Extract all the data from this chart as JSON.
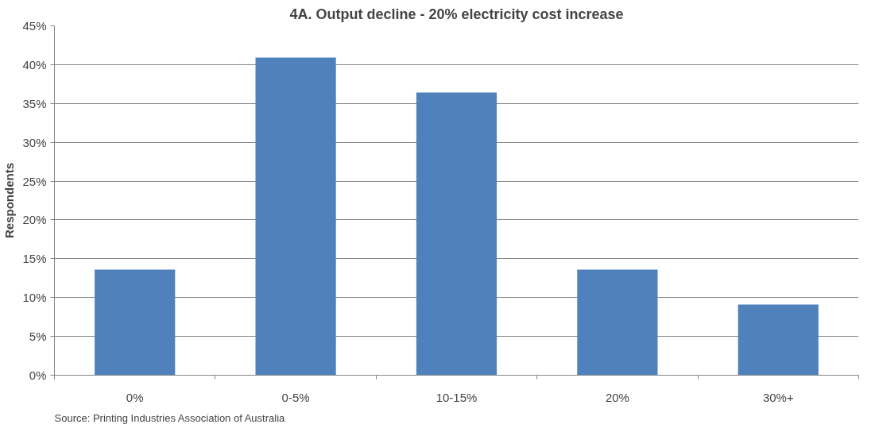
{
  "chart_data": {
    "type": "bar",
    "title": "4A. Output decline - 20% electricity cost increase",
    "ylabel": "Respondents",
    "categories": [
      "0%",
      "0-5%",
      "10-15%",
      "20%",
      "30%+"
    ],
    "values": [
      13.6,
      40.9,
      36.4,
      13.6,
      9.1
    ],
    "color": "#4f81bd",
    "ylim": [
      0,
      45
    ],
    "yticks": [
      {
        "value": 0,
        "label": "0%"
      },
      {
        "value": 5,
        "label": "5%"
      },
      {
        "value": 10,
        "label": "10%"
      },
      {
        "value": 15,
        "label": "15%"
      },
      {
        "value": 20,
        "label": "20%"
      },
      {
        "value": 25,
        "label": "25%"
      },
      {
        "value": 30,
        "label": "30%"
      },
      {
        "value": 35,
        "label": "35%"
      },
      {
        "value": 40,
        "label": "40%"
      },
      {
        "value": 45,
        "label": "45%"
      }
    ],
    "grid": "y",
    "annotations": [
      "Source: Printing Industries Association of Australia"
    ]
  }
}
